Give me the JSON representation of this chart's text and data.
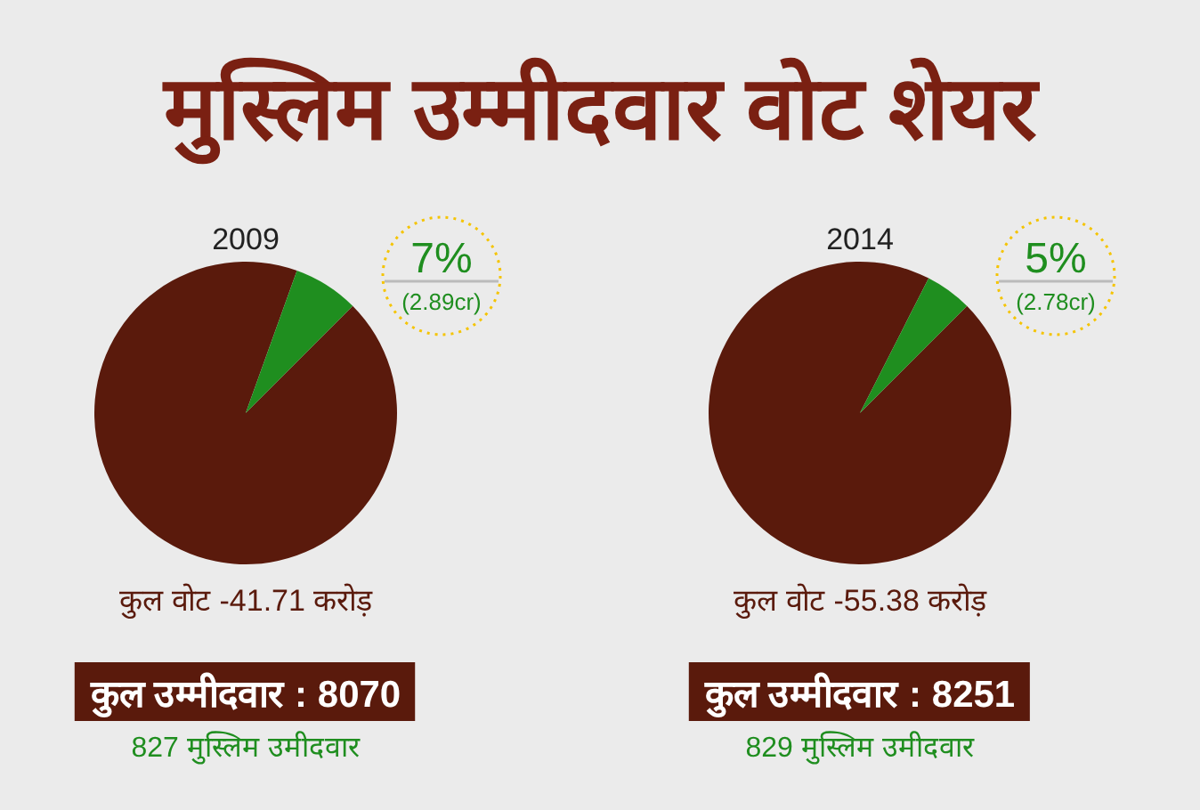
{
  "chart_data": [
    {
      "type": "other",
      "title": "मुस्लिम उम्मीदवार वोट शेयर"
    },
    {
      "type": "pie",
      "title": "2009",
      "categories": [
        null,
        null
      ],
      "values": [
        93,
        7
      ],
      "colors": [
        "#5a1a0c",
        "#1f8e1f"
      ],
      "value_labels": [
        null,
        "7%"
      ],
      "annotations": [
        "(2.89cr)",
        "कुल वोट -41.71 करोड़",
        "कुल उम्मीदवार : 8070",
        "827 मुस्लिम उमीदवार"
      ]
    },
    {
      "type": "pie",
      "title": "2014",
      "categories": [
        null,
        null
      ],
      "values": [
        95,
        5
      ],
      "colors": [
        "#5a1a0c",
        "#1f8e1f"
      ],
      "value_labels": [
        null,
        "5%"
      ],
      "annotations": [
        "(2.78cr)",
        "कुल वोट -55.38 करोड़",
        "कुल उम्मीदवार : 8251",
        "829 मुस्लिम उमीदवार"
      ]
    }
  ]
}
